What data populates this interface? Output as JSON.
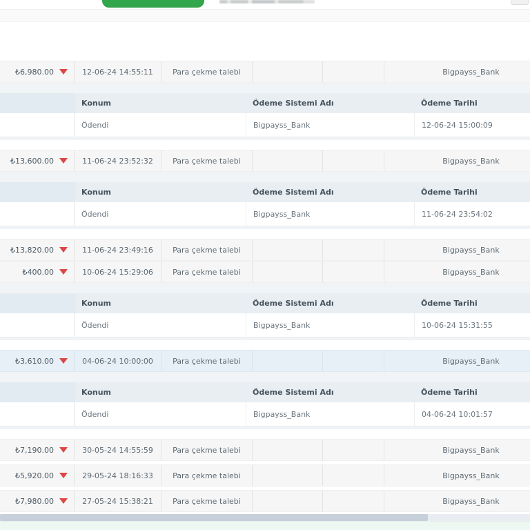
{
  "topbar": {
    "button_color": "#31a64a"
  },
  "table": {
    "sub_headers": {
      "status": "Konum",
      "payment_system": "Ödeme Sistemi Adı",
      "payment_date": "Ödeme Tarihi"
    },
    "rows": [
      {
        "amount": "₺6,980.00",
        "request_date": "12-06-24 14:55:11",
        "type": "Para çekme talebi",
        "payment_system": "Bigpayss_Bank",
        "highlighted": false,
        "detail": {
          "status": "Ödendi",
          "payment_system": "Bigpayss_Bank",
          "payment_date": "12-06-24 15:00:09"
        }
      },
      {
        "amount": "₺13,600.00",
        "request_date": "11-06-24 23:52:32",
        "type": "Para çekme talebi",
        "payment_system": "Bigpayss_Bank",
        "highlighted": false,
        "detail": {
          "status": "Ödendi",
          "payment_system": "Bigpayss_Bank",
          "payment_date": "11-06-24 23:54:02"
        }
      },
      {
        "amount": "₺13,820.00",
        "request_date": "11-06-24 23:49:16",
        "type": "Para çekme talebi",
        "payment_system": "Bigpayss_Bank",
        "highlighted": false,
        "detail": null
      },
      {
        "amount": "₺400.00",
        "request_date": "10-06-24 15:29:06",
        "type": "Para çekme talebi",
        "payment_system": "Bigpayss_Bank",
        "highlighted": false,
        "detail": {
          "status": "Ödendi",
          "payment_system": "Bigpayss_Bank",
          "payment_date": "10-06-24 15:31:55"
        }
      },
      {
        "amount": "₺3,610.00",
        "request_date": "04-06-24 10:00:00",
        "type": "Para çekme talebi",
        "payment_system": "Bigpayss_Bank",
        "highlighted": true,
        "detail": {
          "status": "Ödendi",
          "payment_system": "Bigpayss_Bank",
          "payment_date": "04-06-24 10:01:57"
        }
      },
      {
        "amount": "₺7,190.00",
        "request_date": "30-05-24 14:55:59",
        "type": "Para çekme talebi",
        "payment_system": "Bigpayss_Bank",
        "highlighted": false,
        "detail": null
      },
      {
        "amount": "₺5,920.00",
        "request_date": "29-05-24 18:16:33",
        "type": "Para çekme talebi",
        "payment_system": "Bigpayss_Bank",
        "highlighted": false,
        "detail": null
      },
      {
        "amount": "₺7,980.00",
        "request_date": "27-05-24 15:38:21",
        "type": "Para çekme talebi",
        "payment_system": "Bigpayss_Bank",
        "highlighted": false,
        "detail": null
      }
    ]
  },
  "colors": {
    "accent_green": "#31a64a",
    "highlight_row": "#e7f0f7",
    "arrow_red": "#de4545"
  }
}
